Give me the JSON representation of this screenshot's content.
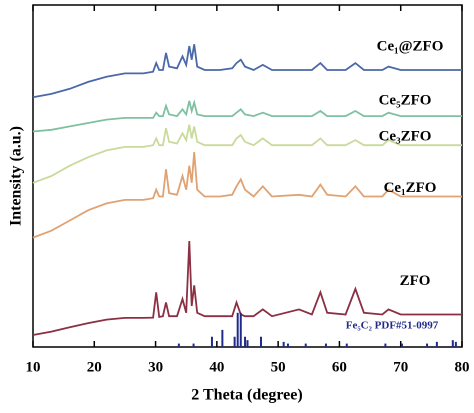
{
  "chart_data": {
    "type": "line",
    "x_label": "2 Theta (degree)",
    "y_label": "Intensity (a.u.)",
    "xlim": [
      10,
      80
    ],
    "xticks": [
      10,
      20,
      30,
      40,
      50,
      60,
      70,
      80
    ],
    "ylim": [
      0,
      100
    ],
    "x": [
      10,
      13,
      16,
      19,
      22,
      25,
      28,
      29.6,
      30.1,
      30.6,
      31.2,
      31.7,
      32.2,
      33.5,
      34.4,
      35,
      35.5,
      35.9,
      36.3,
      36.8,
      38,
      40.5,
      42.5,
      43.2,
      43.9,
      44.6,
      46,
      47.5,
      49,
      53.4,
      55.5,
      56.9,
      58,
      61,
      62.6,
      64,
      67,
      68,
      70,
      75,
      80
    ],
    "series": [
      {
        "name": "ZFO",
        "color": "#8b2f42",
        "values": [
          3.5,
          4.5,
          5.8,
          7,
          8,
          8.5,
          8.5,
          8.6,
          16,
          8.8,
          9,
          13,
          9,
          9,
          14,
          10,
          31,
          12,
          18,
          10,
          9,
          9,
          9,
          13,
          9.5,
          9,
          9,
          11,
          9,
          11,
          9.5,
          16,
          10,
          9.5,
          17,
          10,
          9.5,
          11,
          9.5,
          9.5,
          9.5
        ]
      },
      {
        "name": "Ce₁ZFO",
        "color": "#e0a272",
        "values": [
          32,
          34,
          37,
          40,
          42,
          43,
          43,
          43.5,
          46,
          44,
          44,
          52,
          45,
          44.5,
          50,
          46,
          53,
          48,
          57,
          46,
          44,
          44,
          44.5,
          47,
          49,
          46,
          44,
          47,
          44,
          44.5,
          44,
          47.5,
          44.5,
          44,
          47,
          44,
          44,
          46,
          44,
          44,
          44
        ]
      },
      {
        "name": "Ce₃ZFO",
        "color": "#c9da9c",
        "values": [
          48,
          50,
          53,
          55.5,
          57.5,
          58.5,
          58.5,
          59,
          61,
          59,
          59,
          64,
          60,
          59.5,
          62.5,
          60.5,
          65,
          61,
          64.5,
          60,
          59,
          59,
          59,
          61,
          62,
          60,
          59,
          61,
          59,
          59,
          59,
          61,
          59,
          59,
          60.5,
          59,
          59,
          60.5,
          59,
          59,
          59
        ]
      },
      {
        "name": "Ce₅ZFO",
        "color": "#80c0a2",
        "values": [
          63,
          63.5,
          64.5,
          65.5,
          66.5,
          67,
          67,
          67,
          68.5,
          67.5,
          67.5,
          70.5,
          68,
          67.5,
          69.5,
          68,
          72,
          69,
          71.5,
          68,
          67.5,
          67.5,
          67.5,
          68.5,
          69.5,
          68,
          67.5,
          68.5,
          67.5,
          67.5,
          67.5,
          69,
          67.5,
          67.5,
          69,
          67.5,
          67.5,
          68.5,
          67.5,
          67.5,
          67.5
        ]
      },
      {
        "name": "Ce₁@ZFO",
        "color": "#4b68a8",
        "values": [
          73,
          74,
          75.5,
          77.5,
          79,
          80,
          80,
          80.5,
          83,
          81,
          81,
          86,
          82,
          81.5,
          85,
          82.5,
          88,
          84,
          88.5,
          82,
          81,
          81,
          81.5,
          83,
          84,
          82,
          81,
          82.5,
          81,
          81,
          81,
          83,
          81,
          81,
          83,
          81,
          81,
          82,
          81,
          81,
          81
        ]
      }
    ],
    "reference": {
      "name": "Fe₅C₂ PDF#51-0997",
      "color": "#1f2a8a",
      "positions": [
        33.8,
        36.2,
        39.2,
        40.9,
        42.9,
        43.4,
        43.9,
        44.6,
        45,
        47.2,
        50.9,
        51.6,
        54.5,
        57.8,
        61.2,
        67.5,
        70.2,
        74.3,
        75.9,
        78.5,
        79
      ],
      "heights": [
        1,
        1,
        3,
        5,
        3,
        10,
        10,
        3,
        2,
        3,
        1.5,
        1,
        1,
        1,
        1,
        1,
        1,
        1,
        1.5,
        2,
        1.5
      ]
    }
  }
}
